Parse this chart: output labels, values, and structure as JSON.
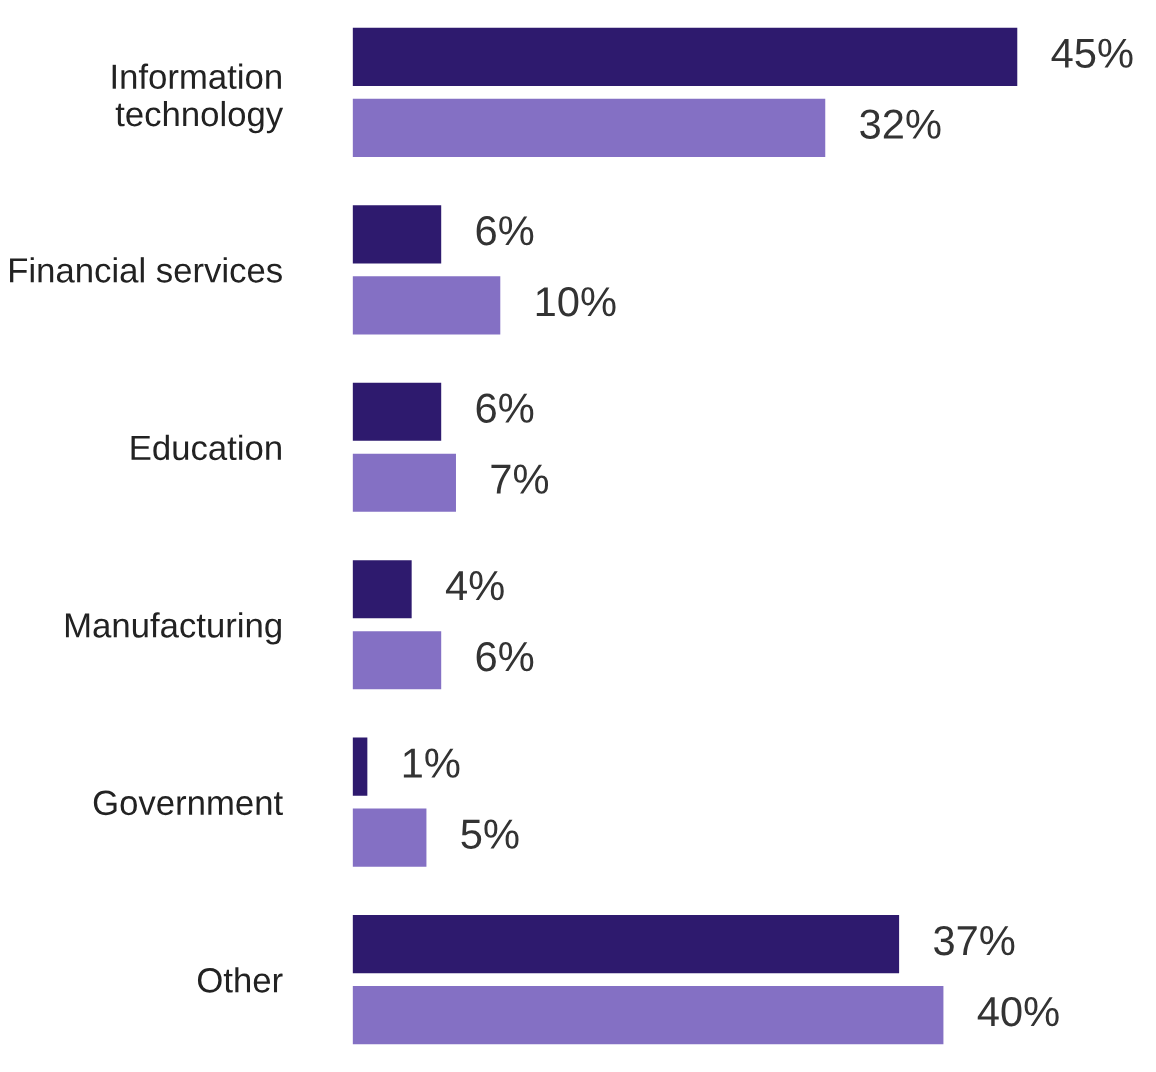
{
  "chart_data": {
    "type": "bar",
    "orientation": "horizontal",
    "categories": [
      "Information\ntechnology",
      "Financial services",
      "Education",
      "Manufacturing",
      "Government",
      "Other"
    ],
    "series": [
      {
        "color": "#2e1a6e",
        "values": [
          45,
          6,
          6,
          4,
          1,
          37
        ],
        "value_labels": [
          "45%",
          "6%",
          "6%",
          "4%",
          "1%",
          "37%"
        ]
      },
      {
        "color": "#8470c4",
        "values": [
          32,
          10,
          7,
          6,
          5,
          40
        ],
        "value_labels": [
          "32%",
          "10%",
          "7%",
          "6%",
          "5%",
          "40%"
        ]
      }
    ]
  }
}
